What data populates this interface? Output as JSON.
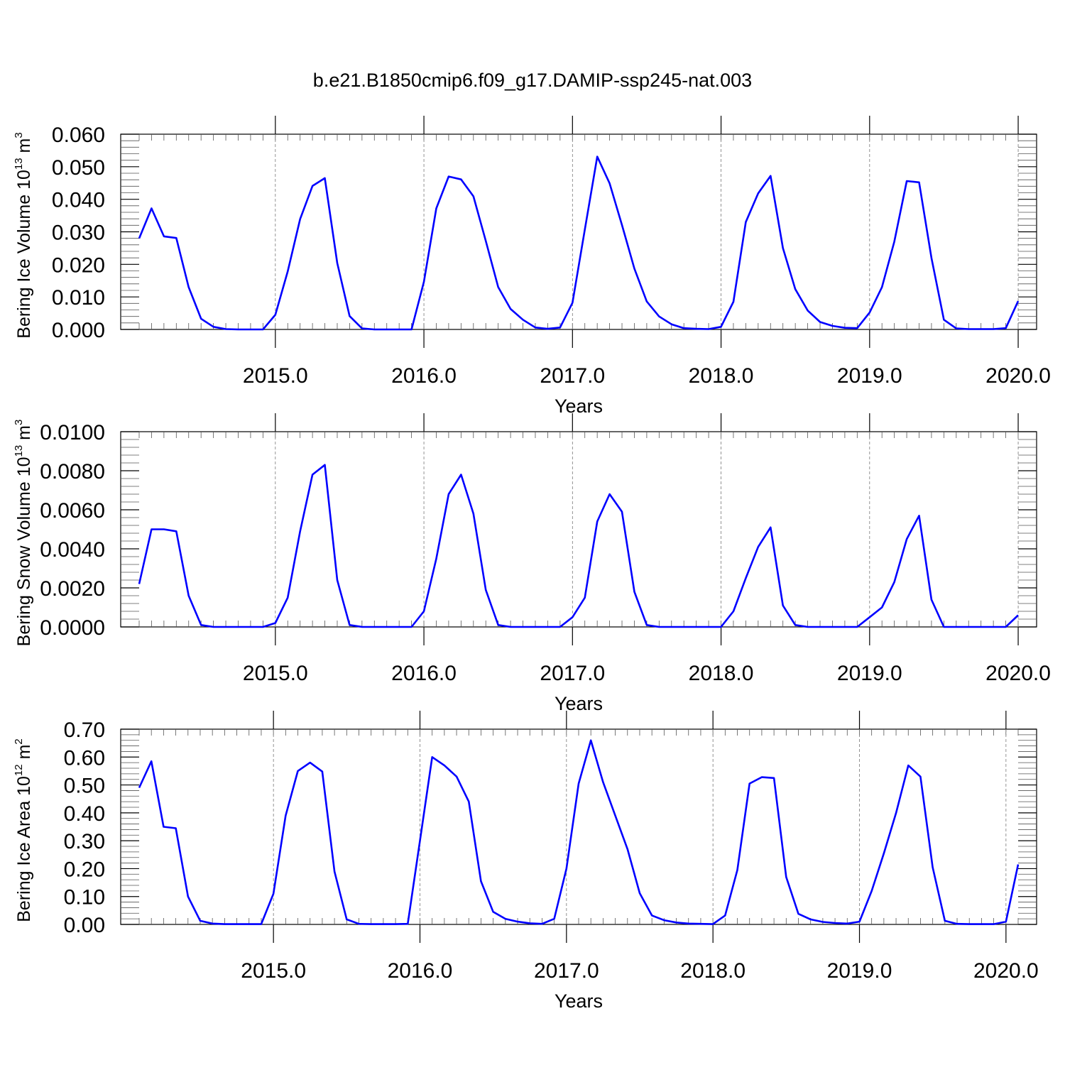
{
  "title": "b.e21.B1850cmip6.f09_g17.DAMIP-ssp245-nat.003",
  "colors": {
    "series": "#0000ff",
    "axes": "#000000",
    "grid": "#777777"
  },
  "chart_data": [
    {
      "type": "line",
      "ylabel": "Bering Ice Volume 10",
      "ylabel_sup": "13",
      "ylabel_unit": "m",
      "ylabel_unit_sup": "3",
      "xlabel": "Years",
      "xlim": [
        2014.0833,
        2020.125
      ],
      "ylim": [
        0,
        0.06
      ],
      "xticks": [
        2015,
        2016,
        2017,
        2018,
        2019,
        2020
      ],
      "xtick_labels": [
        "2015.0",
        "2016.0",
        "2017.0",
        "2018.0",
        "2019.0",
        "2020.0"
      ],
      "yticks": [
        0,
        0.01,
        0.02,
        0.03,
        0.04,
        0.05,
        0.06
      ],
      "ytick_labels": [
        "0.000",
        "0.010",
        "0.020",
        "0.030",
        "0.040",
        "0.050",
        "0.060"
      ],
      "grid": "dashed vertical lines at year ticks",
      "x_start": 2014.0833,
      "x_step": 0.08333,
      "values": [
        0.028,
        0.0372,
        0.0286,
        0.0281,
        0.013,
        0.0033,
        0.0008,
        0.0001,
        0.0,
        0.0,
        0.0,
        0.0045,
        0.0178,
        0.0339,
        0.0441,
        0.0465,
        0.0204,
        0.0041,
        0.0003,
        0.0,
        0.0,
        0.0,
        0.0,
        0.0146,
        0.0372,
        0.047,
        0.0461,
        0.0409,
        0.0272,
        0.013,
        0.0063,
        0.003,
        0.0006,
        0.0002,
        0.0006,
        0.0082,
        0.0307,
        0.0531,
        0.0449,
        0.0321,
        0.0187,
        0.0086,
        0.004,
        0.0016,
        0.0004,
        0.0002,
        0.0001,
        0.0008,
        0.0085,
        0.033,
        0.0418,
        0.0472,
        0.025,
        0.0124,
        0.0058,
        0.0023,
        0.0011,
        0.0005,
        0.0004,
        0.0052,
        0.013,
        0.027,
        0.0456,
        0.0452,
        0.022,
        0.003,
        0.0003,
        0.0001,
        0.0001,
        0.0001,
        0.0004,
        0.0087
      ]
    },
    {
      "type": "line",
      "ylabel": "Bering Snow Volume 10",
      "ylabel_sup": "13",
      "ylabel_unit": "m",
      "ylabel_unit_sup": "3",
      "xlabel": "Years",
      "xlim": [
        2014.0833,
        2020.125
      ],
      "ylim": [
        0,
        0.01
      ],
      "xticks": [
        2015,
        2016,
        2017,
        2018,
        2019,
        2020
      ],
      "xtick_labels": [
        "2015.0",
        "2016.0",
        "2017.0",
        "2018.0",
        "2019.0",
        "2020.0"
      ],
      "yticks": [
        0,
        0.002,
        0.004,
        0.006,
        0.008,
        0.01
      ],
      "ytick_labels": [
        "0.0000",
        "0.0020",
        "0.0040",
        "0.0060",
        "0.0080",
        "0.0100"
      ],
      "grid": "dashed vertical lines at year ticks",
      "x_start": 2014.0833,
      "x_step": 0.08333,
      "values": [
        0.0022,
        0.005,
        0.005,
        0.0049,
        0.0016,
        0.0001,
        0.0,
        0.0,
        0.0,
        0.0,
        0.0,
        0.0002,
        0.0015,
        0.0049,
        0.0078,
        0.0083,
        0.0024,
        0.0001,
        0.0,
        0.0,
        0.0,
        0.0,
        0.0,
        0.0008,
        0.0035,
        0.0068,
        0.0078,
        0.0058,
        0.0019,
        0.0001,
        0.0,
        0.0,
        0.0,
        0.0,
        0.0,
        0.0005,
        0.0015,
        0.0054,
        0.0068,
        0.0059,
        0.0018,
        0.0001,
        0.0,
        0.0,
        0.0,
        0.0,
        0.0,
        0.0,
        0.0008,
        0.0025,
        0.0041,
        0.0051,
        0.0011,
        0.0001,
        0.0,
        0.0,
        0.0,
        0.0,
        0.0,
        0.0005,
        0.001,
        0.0023,
        0.0045,
        0.0057,
        0.0014,
        0.0,
        0.0,
        0.0,
        0.0,
        0.0,
        0.0,
        0.0006
      ]
    },
    {
      "type": "line",
      "ylabel": "Bering Ice Area 10",
      "ylabel_sup": "12",
      "ylabel_unit": "m",
      "ylabel_unit_sup": "2",
      "xlabel": "Years",
      "xlim": [
        2014.0833,
        2020.125
      ],
      "ylim": [
        0,
        0.7
      ],
      "xticks": [
        2015,
        2016,
        2017,
        2018,
        2019,
        2020
      ],
      "xtick_labels": [
        "2015.0",
        "2016.0",
        "2017.0",
        "2018.0",
        "2019.0",
        "2020.0"
      ],
      "yticks": [
        0,
        0.1,
        0.2,
        0.3,
        0.4,
        0.5,
        0.6,
        0.7
      ],
      "ytick_labels": [
        "0.00",
        "0.10",
        "0.20",
        "0.30",
        "0.40",
        "0.50",
        "0.60",
        "0.70"
      ],
      "grid": "dashed vertical lines at year ticks",
      "x_start": 2014.0833,
      "x_step": 0.08333,
      "values": [
        0.49,
        0.585,
        0.35,
        0.345,
        0.1,
        0.013,
        0.003,
        0.001,
        0.001,
        0.001,
        0.001,
        0.11,
        0.39,
        0.55,
        0.58,
        0.548,
        0.19,
        0.018,
        0.002,
        0.001,
        0.001,
        0.001,
        0.002,
        0.3,
        0.6,
        0.57,
        0.53,
        0.44,
        0.155,
        0.045,
        0.02,
        0.01,
        0.004,
        0.002,
        0.02,
        0.2,
        0.505,
        0.66,
        0.51,
        0.39,
        0.27,
        0.112,
        0.032,
        0.015,
        0.007,
        0.003,
        0.002,
        0.001,
        0.032,
        0.195,
        0.505,
        0.528,
        0.525,
        0.17,
        0.038,
        0.018,
        0.009,
        0.005,
        0.003,
        0.01,
        0.12,
        0.255,
        0.4,
        0.57,
        0.53,
        0.205,
        0.013,
        0.002,
        0.001,
        0.001,
        0.001,
        0.01,
        0.215
      ]
    }
  ]
}
